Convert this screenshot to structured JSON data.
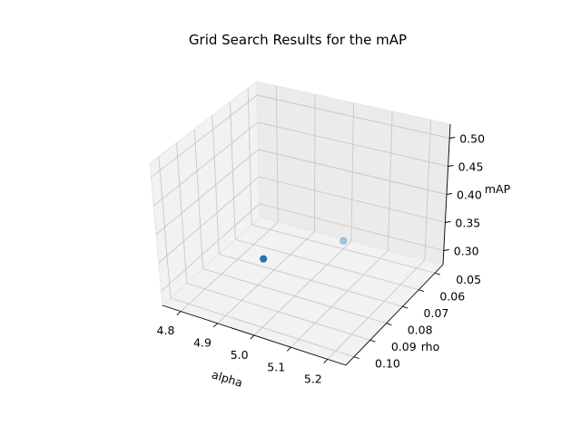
{
  "chart_data": {
    "type": "scatter3d",
    "title": "Grid Search Results for the mAP",
    "xlabel": "alpha",
    "ylabel": "rho",
    "zlabel": "mAP",
    "xticks": [
      "4.8",
      "4.9",
      "5.0",
      "5.1",
      "5.2"
    ],
    "yticks": [
      "0.05",
      "0.06",
      "0.07",
      "0.08",
      "0.09",
      "0.10"
    ],
    "zticks": [
      "0.30",
      "0.35",
      "0.40",
      "0.45",
      "0.50"
    ],
    "xlim": [
      4.75,
      5.25
    ],
    "ylim": [
      0.045,
      0.105
    ],
    "zlim": [
      0.275,
      0.525
    ],
    "points": [
      {
        "x": 5.0,
        "y": 0.1,
        "z": 0.4,
        "depth": "near"
      },
      {
        "x": 5.0,
        "y": 0.05,
        "z": 0.3,
        "depth": "far"
      }
    ],
    "colors": {
      "marker": "#1f77b4",
      "pane": "#f2f2f2",
      "pane_edge": "#e6e6e6",
      "grid": "#c8c8c8",
      "axis": "#000000"
    },
    "grid": true
  }
}
